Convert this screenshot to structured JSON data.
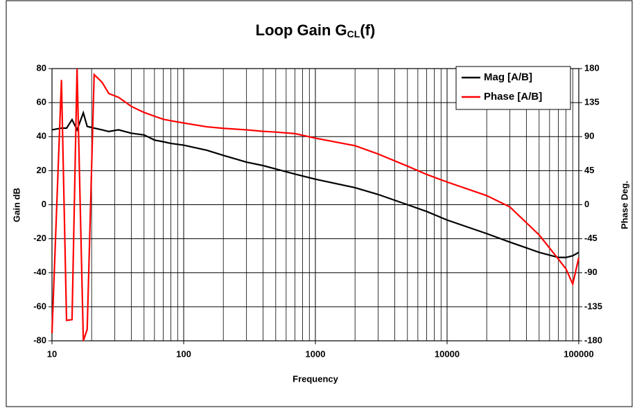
{
  "chart_data": {
    "type": "line",
    "title": [
      "Loop Gain G",
      "CL",
      "(f)"
    ],
    "xlabel": "Frequency",
    "ylabel": "Gain dB",
    "y2label": "Phase Deg.",
    "xscale": "log",
    "grid": true,
    "legend": "upper right",
    "x": [
      10,
      11.8,
      12.9,
      14.2,
      15.5,
      17.3,
      18.5,
      20.9,
      24,
      27,
      32,
      40,
      50,
      60,
      70,
      80,
      100,
      150,
      200,
      300,
      400,
      500,
      700,
      1000,
      2000,
      3000,
      5000,
      7000,
      10000,
      20000,
      30000,
      50000,
      70000,
      80000,
      90000,
      100000
    ],
    "series": [
      {
        "name": "Mag [A/B]",
        "color": "#000000",
        "values": [
          44,
          45,
          45,
          50,
          44,
          54,
          46,
          45,
          44,
          43,
          44,
          42,
          41,
          38,
          37,
          36,
          35,
          32,
          29,
          25,
          23,
          21,
          18,
          15,
          10,
          6,
          0,
          -4,
          -9,
          -17,
          -22,
          -28,
          -31,
          -31,
          -30,
          -28
        ]
      },
      {
        "name": "Phase [A/B]",
        "color": "#ff0000",
        "axis": "y2",
        "values": [
          -170,
          165,
          -153,
          -152,
          180,
          -180,
          -165,
          172,
          162,
          147,
          142,
          130,
          122,
          117,
          113,
          111,
          108,
          103,
          101,
          99,
          97,
          96,
          94,
          88,
          78,
          67,
          51,
          40,
          30,
          12,
          -3,
          -40,
          -72,
          -85,
          -105,
          -70
        ]
      }
    ],
    "xlim": [
      10,
      100000
    ],
    "xticks": [
      10,
      100,
      1000,
      10000,
      100000
    ],
    "ylim": [
      -80,
      80
    ],
    "yticks": [
      -80,
      -60,
      -40,
      -20,
      0,
      20,
      40,
      60,
      80
    ],
    "y2lim": [
      -180,
      180
    ],
    "y2ticks": [
      -180,
      -135,
      -90,
      -45,
      0,
      45,
      90,
      135,
      180
    ]
  }
}
